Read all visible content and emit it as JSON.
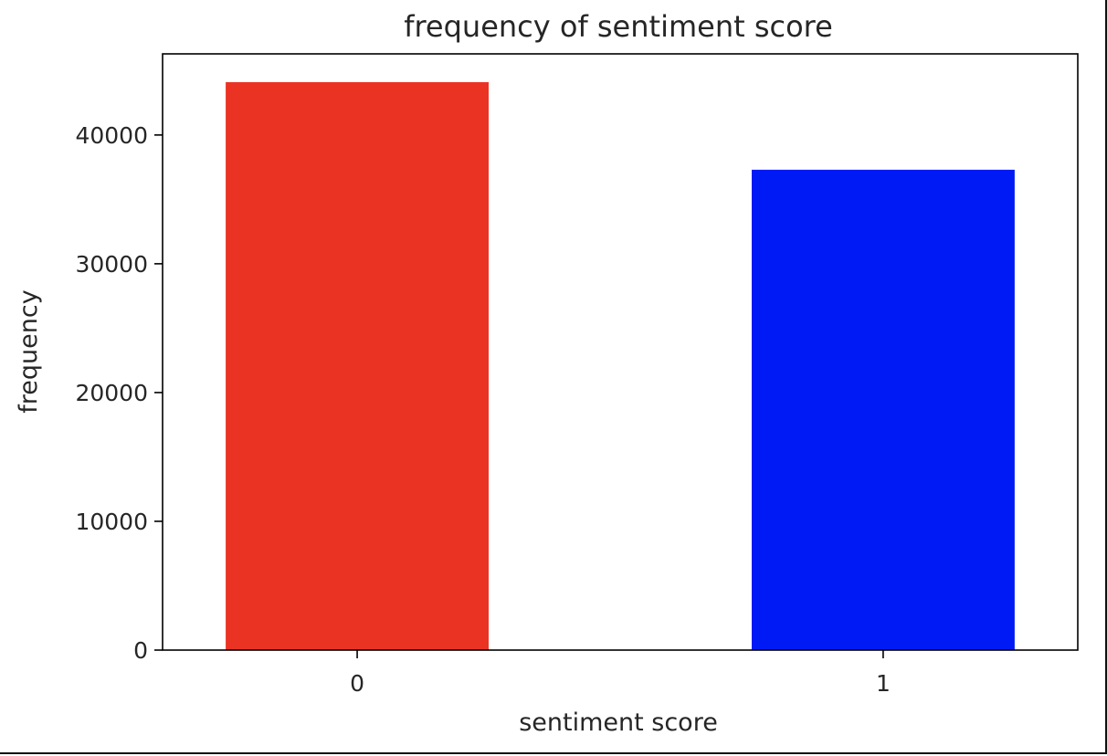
{
  "chart_data": {
    "type": "bar",
    "title": "frequency of sentiment score",
    "xlabel": "sentiment score",
    "ylabel": "frequency",
    "categories": [
      "0",
      "1"
    ],
    "values": [
      44100,
      37300
    ],
    "colors": [
      "#ea3323",
      "#001af5"
    ],
    "ylim": [
      0,
      46300
    ],
    "yticks": [
      0,
      10000,
      20000,
      30000,
      40000
    ],
    "grid": false
  }
}
